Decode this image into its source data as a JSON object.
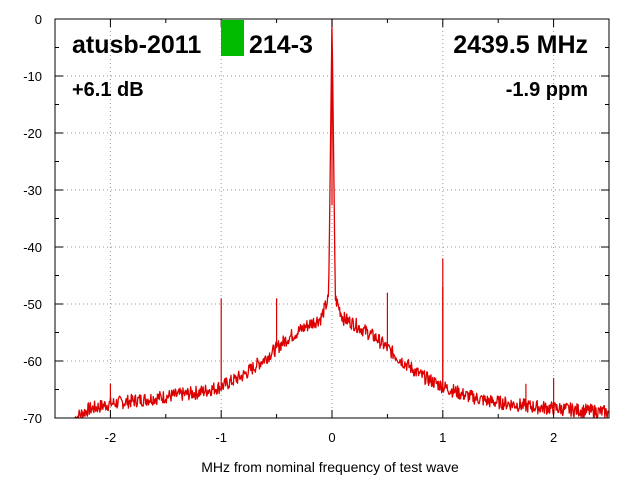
{
  "chart_data": {
    "type": "line",
    "title_left": "atusb-2011",
    "title_right": "214-3",
    "frequency": "2439.5 MHz",
    "gain": "+6.1 dB",
    "ppm": "-1.9 ppm",
    "xlabel": "MHz from nominal frequency of test wave",
    "ylabel": "",
    "xlim": [
      -2.5,
      2.5
    ],
    "ylim": [
      -70,
      0
    ],
    "xticks": [
      -2,
      -1,
      0,
      1,
      2
    ],
    "xtick_labels": [
      "-2",
      "-1",
      "0",
      "1",
      "2"
    ],
    "yticks": [
      0,
      -10,
      -20,
      -30,
      -40,
      -50,
      -60,
      -70
    ],
    "ytick_labels": [
      "0",
      "-10",
      "-20",
      "-30",
      "-40",
      "-50",
      "-60",
      "-70"
    ],
    "grid": true,
    "series": [
      {
        "color": "#dd0000",
        "x": [
          -2.32,
          -2.2,
          -2.0,
          -1.8,
          -1.6,
          -1.4,
          -1.2,
          -1.0,
          -0.8,
          -0.6,
          -0.4,
          -0.2,
          -0.1,
          -0.03,
          0.0,
          0.03,
          0.1,
          0.2,
          0.4,
          0.6,
          0.8,
          1.0,
          1.2,
          1.4,
          1.6,
          1.8,
          2.0,
          2.2,
          2.5
        ],
        "y": [
          -70,
          -68.5,
          -67.5,
          -67,
          -66.5,
          -66,
          -65.5,
          -64.5,
          -62.5,
          -59.5,
          -56,
          -53.5,
          -52.5,
          -49,
          0,
          -49,
          -52.5,
          -53.5,
          -56,
          -59.5,
          -62.5,
          -64.5,
          -66,
          -67,
          -67.5,
          -68,
          -68.3,
          -68.6,
          -69
        ]
      }
    ],
    "spurs": [
      {
        "x": -2.0,
        "y": -64
      },
      {
        "x": -1.0,
        "y": -49
      },
      {
        "x": -0.5,
        "y": -49
      },
      {
        "x": 0.5,
        "y": -48
      },
      {
        "x": 1.0,
        "y": -42
      },
      {
        "x": 1.0,
        "y": -47
      },
      {
        "x": 1.75,
        "y": -64
      },
      {
        "x": 2.0,
        "y": -63
      }
    ],
    "marker_color": "#00bb00"
  }
}
